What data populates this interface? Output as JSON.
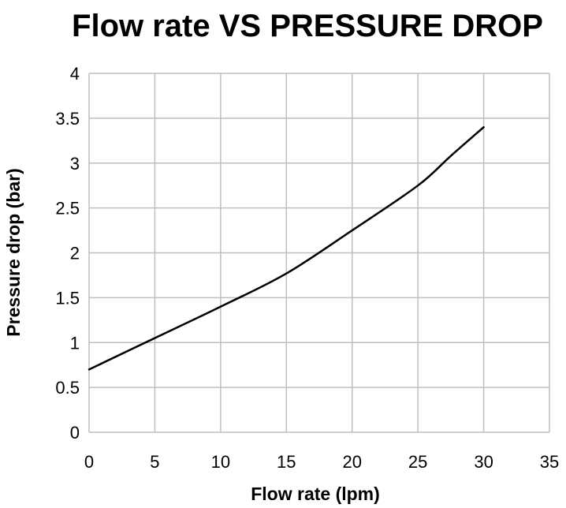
{
  "chart_data": {
    "type": "line",
    "title": "Flow rate VS PRESSURE DROP",
    "xlabel": "Flow rate (lpm)",
    "ylabel": "Pressure drop (bar)",
    "xlim": [
      0,
      35
    ],
    "ylim": [
      0,
      4
    ],
    "xticks": [
      "0",
      "5",
      "10",
      "15",
      "20",
      "25",
      "30",
      "35"
    ],
    "yticks": [
      "0",
      "0.5",
      "1",
      "1.5",
      "2",
      "2.5",
      "3",
      "3.5",
      "4"
    ],
    "grid": true,
    "legend": "none",
    "series": [
      {
        "color": "#000000",
        "x": [
          0,
          5,
          10,
          15,
          20,
          25,
          27.5,
          30
        ],
        "y": [
          0.7,
          1.05,
          1.4,
          1.77,
          2.25,
          2.75,
          3.08,
          3.4
        ]
      }
    ]
  }
}
